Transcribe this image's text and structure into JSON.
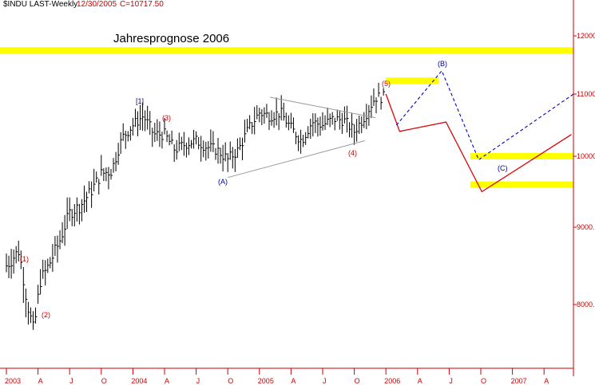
{
  "header": {
    "symbol": "$INDU LAST-Weekly",
    "date": "12/30/2005",
    "close": "C=10717.50"
  },
  "chart_data": {
    "type": "ohlc",
    "title": "Jahresprognose 2006",
    "ylim": [
      7300,
      12450
    ],
    "y_ticks": [
      {
        "value": 8000,
        "label": "8000."
      },
      {
        "value": 9000,
        "label": "9000."
      },
      {
        "value": 10000,
        "label": "10000."
      },
      {
        "value": 11000,
        "label": "11000."
      },
      {
        "value": 12000,
        "label": "12000."
      }
    ],
    "x_ticks": [
      "2003",
      "A",
      "J",
      "O",
      "2004",
      "A",
      "J",
      "O",
      "2005",
      "A",
      "J",
      "O",
      "2006",
      "A",
      "J",
      "O",
      "2007",
      "A"
    ],
    "forecast_bands": [
      {
        "y": 11750,
        "from": "2003",
        "to": "axis"
      },
      {
        "y": 11230,
        "from": "2006-01",
        "to": "2006-06"
      },
      {
        "y": 10000,
        "from": "2006-09",
        "to": "axis"
      },
      {
        "y": 9600,
        "from": "2006-09",
        "to": "axis"
      }
    ],
    "triangle_lines": [
      {
        "from": [
          10950,
          "2005-02"
        ],
        "to": [
          10620,
          "2005-12"
        ]
      },
      {
        "from": [
          9700,
          "2004-10"
        ],
        "to": [
          10250,
          "2005-11"
        ]
      }
    ],
    "red_forecast_path": [
      11000,
      10400,
      10550,
      9500,
      10350
    ],
    "blue_forecast_path": [
      10500,
      11400,
      9950,
      11000
    ],
    "wave_labels_red": [
      "(1)",
      "(2)",
      "(3)",
      "(4)",
      "(5)"
    ],
    "wave_labels_blue": [
      "[1]",
      "(A)",
      "(B)",
      "(C)"
    ],
    "colors": {
      "bars": "#000000",
      "axis": "#cc0000",
      "bands": "#ffff00",
      "red_path": "#dd0000",
      "blue_path": "#0000cc",
      "triangle": "#999999"
    }
  }
}
